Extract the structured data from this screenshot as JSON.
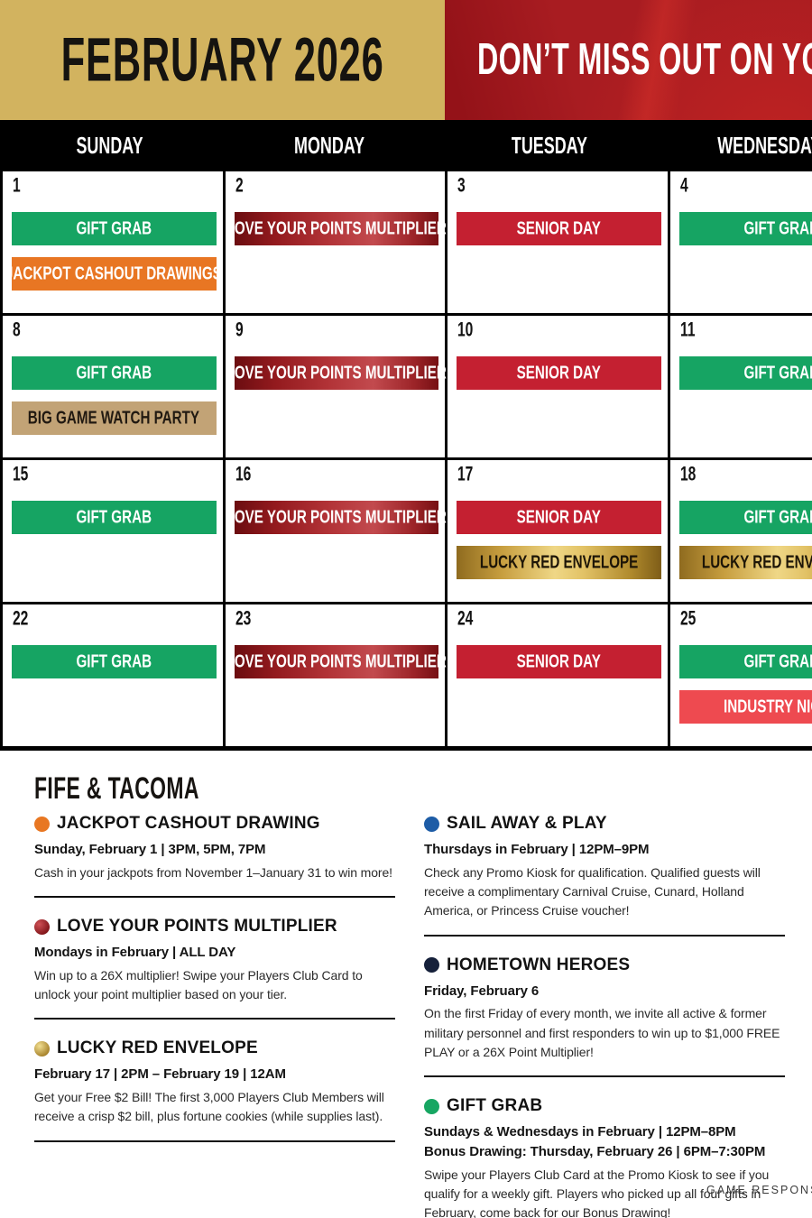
{
  "header": {
    "month_title": "FEBRUARY 2026",
    "banner_text": "DON’T MISS OUT ON YOUR",
    "colors": {
      "gold": "#d2b35f",
      "red": "#a81c21"
    }
  },
  "weekdays": [
    "SUNDAY",
    "MONDAY",
    "TUESDAY",
    "WEDNESDAY"
  ],
  "event_types": {
    "giftgrab": {
      "label": "GIFT GRAB",
      "style": "ev-green",
      "color": "#16a463"
    },
    "jackpot": {
      "label": "JACKPOT CASHOUT DRAWINGS",
      "style": "ev-orange",
      "color": "#e87623"
    },
    "lovepoints": {
      "label": "LOVE YOUR POINTS MULTIPLIER",
      "style": "ev-redgrad",
      "color": "#9c2226"
    },
    "senior": {
      "label": "SENIOR DAY",
      "style": "ev-red",
      "color": "#c42031"
    },
    "biggame": {
      "label": "BIG GAME WATCH PARTY",
      "style": "ev-tan",
      "color": "#c2a376"
    },
    "luckyred": {
      "label": "LUCKY RED ENVELOPE",
      "style": "ev-gold",
      "color": "#d8b254"
    },
    "industry": {
      "label": "INDUSTRY NIGHT",
      "style": "ev-coral",
      "color": "#ee4a50"
    }
  },
  "calendar": {
    "cells": [
      {
        "date": "1",
        "events": [
          "giftgrab",
          "jackpot"
        ]
      },
      {
        "date": "2",
        "events": [
          "lovepoints"
        ]
      },
      {
        "date": "3",
        "events": [
          "senior"
        ]
      },
      {
        "date": "4",
        "events": [
          "giftgrab"
        ]
      },
      {
        "date": "8",
        "events": [
          "giftgrab",
          "biggame"
        ]
      },
      {
        "date": "9",
        "events": [
          "lovepoints"
        ]
      },
      {
        "date": "10",
        "events": [
          "senior"
        ]
      },
      {
        "date": "11",
        "events": [
          "giftgrab"
        ]
      },
      {
        "date": "15",
        "events": [
          "giftgrab"
        ]
      },
      {
        "date": "16",
        "events": [
          "lovepoints"
        ]
      },
      {
        "date": "17",
        "events": [
          "senior",
          "luckyred"
        ]
      },
      {
        "date": "18",
        "events": [
          "giftgrab",
          "luckyred"
        ]
      },
      {
        "date": "22",
        "events": [
          "giftgrab"
        ]
      },
      {
        "date": "23",
        "events": [
          "lovepoints"
        ]
      },
      {
        "date": "24",
        "events": [
          "senior"
        ]
      },
      {
        "date": "25",
        "events": [
          "giftgrab",
          "industry"
        ]
      }
    ]
  },
  "location_heading": "FIFE & TACOMA",
  "legend": {
    "left": [
      {
        "dot": "dot-orange",
        "title": "JACKPOT CASHOUT DRAWING",
        "subtitles": [
          "Sunday, February 1 | 3PM, 5PM, 7PM"
        ],
        "body": "Cash in your jackpots from November 1–January 31 to win more!"
      },
      {
        "dot": "dot-redgrad",
        "title": "LOVE YOUR POINTS MULTIPLIER",
        "subtitles": [
          "Mondays in February | ALL DAY"
        ],
        "body": "Win up to a 26X multiplier! Swipe your Players Club Card to unlock your point multiplier based on your tier."
      },
      {
        "dot": "dot-gold",
        "title": "LUCKY RED ENVELOPE",
        "subtitles": [
          "February 17 | 2PM – February 19 | 12AM"
        ],
        "body": "Get your Free $2 Bill! The first 3,000 Players Club Members will receive a crisp $2 bill, plus fortune cookies (while supplies last)."
      }
    ],
    "right": [
      {
        "dot": "dot-blue",
        "title": "SAIL AWAY & PLAY",
        "subtitles": [
          "Thursdays in February | 12PM–9PM"
        ],
        "body": "Check any Promo Kiosk for qualification. Qualified guests will receive a complimentary Carnival Cruise, Cunard, Holland America, or Princess Cruise voucher!"
      },
      {
        "dot": "dot-navy",
        "title": "HOMETOWN HEROES",
        "subtitles": [
          "Friday, February 6"
        ],
        "body": "On the first Friday of every month, we invite all active & former military personnel and first responders to win up to $1,000 FREE PLAY or a 26X Point Multiplier!"
      },
      {
        "dot": "dot-green",
        "title": "GIFT GRAB",
        "subtitles": [
          "Sundays & Wednesdays in February | 12PM–8PM",
          "Bonus Drawing: Thursday, February 26 | 6PM–7:30PM"
        ],
        "body": "Swipe your Players Club Card at the Promo Kiosk to see if you qualify for a weekly gift. Players who picked up all four gifts in February, come back for our Bonus Drawing!"
      }
    ]
  },
  "footer": {
    "text": "GAME RESPONSIBLY"
  }
}
